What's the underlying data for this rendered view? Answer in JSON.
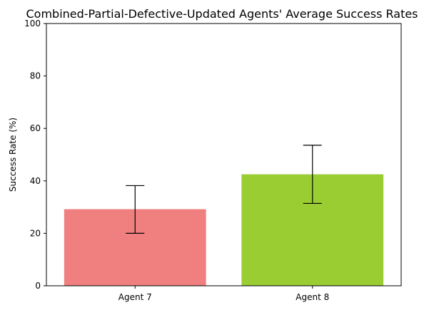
{
  "chart_data": {
    "type": "bar",
    "title": "Combined-Partial-Defective-Updated Agents' Average Success Rates",
    "xlabel": "",
    "ylabel": "Success Rate (%)",
    "ylim": [
      0,
      100
    ],
    "yticks": [
      0,
      20,
      40,
      60,
      80,
      100
    ],
    "categories": [
      "Agent 7",
      "Agent 8"
    ],
    "values": [
      29.2,
      42.5
    ],
    "error_low": [
      20.0,
      31.4
    ],
    "error_high": [
      38.2,
      53.6
    ],
    "colors": [
      "#f08080",
      "#9acd32"
    ],
    "grid": false,
    "legend": "none"
  }
}
